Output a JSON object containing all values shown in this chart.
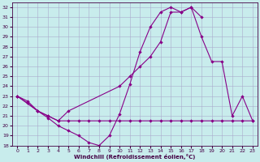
{
  "background_color": "#c8ecec",
  "grid_color": "#aaaacc",
  "line_color": "#880088",
  "xlim": [
    -0.5,
    23.5
  ],
  "ylim": [
    18,
    32.5
  ],
  "xticks": [
    0,
    1,
    2,
    3,
    4,
    5,
    6,
    7,
    8,
    9,
    10,
    11,
    12,
    13,
    14,
    15,
    16,
    17,
    18,
    19,
    20,
    21,
    22,
    23
  ],
  "yticks": [
    18,
    19,
    20,
    21,
    22,
    23,
    24,
    25,
    26,
    27,
    28,
    29,
    30,
    31,
    32
  ],
  "xlabel": "Windchill (Refroidissement éolien,°C)",
  "line1_x": [
    0,
    1,
    2,
    3,
    4,
    5,
    6,
    7,
    8,
    9,
    10,
    11,
    12,
    13,
    14,
    15,
    16,
    17,
    18
  ],
  "line1_y": [
    23,
    22.5,
    21.5,
    20.8,
    20,
    19.5,
    19,
    18.3,
    18,
    19,
    21.2,
    24.2,
    27.5,
    30,
    31.5,
    32,
    31.5,
    32,
    31
  ],
  "line2_x": [
    0,
    1,
    2,
    3,
    4,
    5,
    6,
    7,
    8,
    9,
    10,
    11,
    12,
    13,
    14,
    15,
    16,
    17,
    18,
    19,
    20,
    21,
    22,
    23
  ],
  "line2_y": [
    23,
    22.3,
    21.5,
    21,
    20.5,
    20.5,
    20.5,
    20.5,
    20.5,
    20.5,
    20.5,
    20.5,
    20.5,
    20.5,
    20.5,
    20.5,
    20.5,
    20.5,
    20.5,
    20.5,
    20.5,
    20.5,
    20.5,
    20.5
  ],
  "line3_x": [
    0,
    2,
    3,
    4,
    5,
    10,
    11,
    12,
    13,
    14,
    15,
    16,
    17,
    18,
    19,
    20,
    21,
    22,
    23
  ],
  "line3_y": [
    23,
    21.5,
    21,
    20.5,
    21.5,
    24,
    25,
    26,
    27,
    28.5,
    31.5,
    31.5,
    32,
    29,
    26.5,
    26.5,
    21,
    23,
    20.5
  ]
}
